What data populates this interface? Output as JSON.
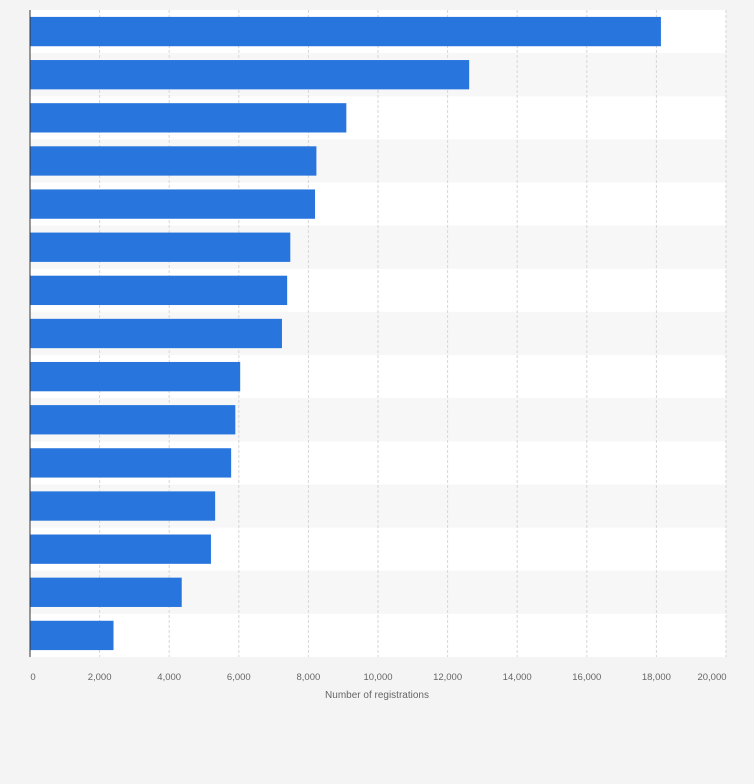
{
  "chart_data": {
    "type": "bar",
    "orientation": "horizontal",
    "title": "",
    "xlabel": "Number of registrations",
    "ylabel": "",
    "xlim": [
      0,
      20000
    ],
    "x_ticks": [
      0,
      2000,
      4000,
      6000,
      8000,
      10000,
      12000,
      14000,
      16000,
      18000,
      20000
    ],
    "x_tick_labels": [
      "0",
      "2,000",
      "4,000",
      "6,000",
      "8,000",
      "10,000",
      "12,000",
      "14,000",
      "16,000",
      "18,000",
      "20,000"
    ],
    "values": [
      18130,
      12620,
      9090,
      8230,
      8190,
      7480,
      7390,
      7240,
      6040,
      5900,
      5780,
      5320,
      5200,
      4360,
      2400
    ],
    "bar_color": "#2876dd",
    "grid": true,
    "legend": "none"
  }
}
